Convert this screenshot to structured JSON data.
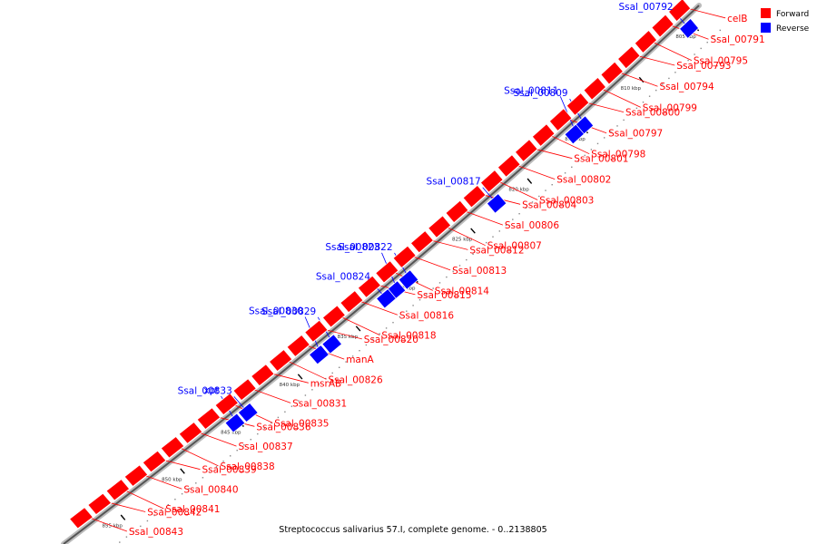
{
  "caption": "Streptococcus salivarius 57.I, complete genome. - 0..2138805",
  "legend": {
    "forward": {
      "label": "Forward",
      "color": "#ff0000"
    },
    "reverse": {
      "label": "Reverse",
      "color": "#0000ff"
    }
  },
  "ticks": [
    "805 kbp",
    "810 kbp",
    "815 kbp",
    "820 kbp",
    "825 kbp",
    "830 kbp",
    "835 kbp",
    "840 kbp",
    "845 kbp",
    "850 kbp",
    "855 kbp"
  ],
  "forward_labels": [
    "celB",
    "Ssal_00791",
    "Ssal_00795",
    "Ssal_00793",
    "Ssal_00794",
    "Ssal_00799",
    "Ssal_00800",
    "Ssal_00797",
    "Ssal_00798",
    "Ssal_00801",
    "Ssal_00802",
    "Ssal_00803",
    "Ssal_00804",
    "Ssal_00806",
    "Ssal_00807",
    "Ssal_00812",
    "Ssal_00813",
    "Ssal_00814",
    "Ssal_00815",
    "Ssal_00816",
    "Ssal_00818",
    "Ssal_00820",
    "manA",
    "Ssal_00826",
    "msrAB",
    "Ssal_00831",
    "Ssal_00835",
    "Ssal_00836",
    "Ssal_00837",
    "Ssal_00838",
    "Ssal_00839",
    "Ssal_00840",
    "Ssal_00841",
    "Ssal_00842",
    "Ssal_00843"
  ],
  "reverse_labels": [
    "Ssal_00792",
    "Ssal_00809",
    "Ssal_00811",
    "Ssal_00817",
    "Ssal_00822",
    "Ssal_00823",
    "Ssal_00824",
    "Ssal_00829",
    "Ssal_00830",
    "Ssal_00833",
    "xpt"
  ]
}
